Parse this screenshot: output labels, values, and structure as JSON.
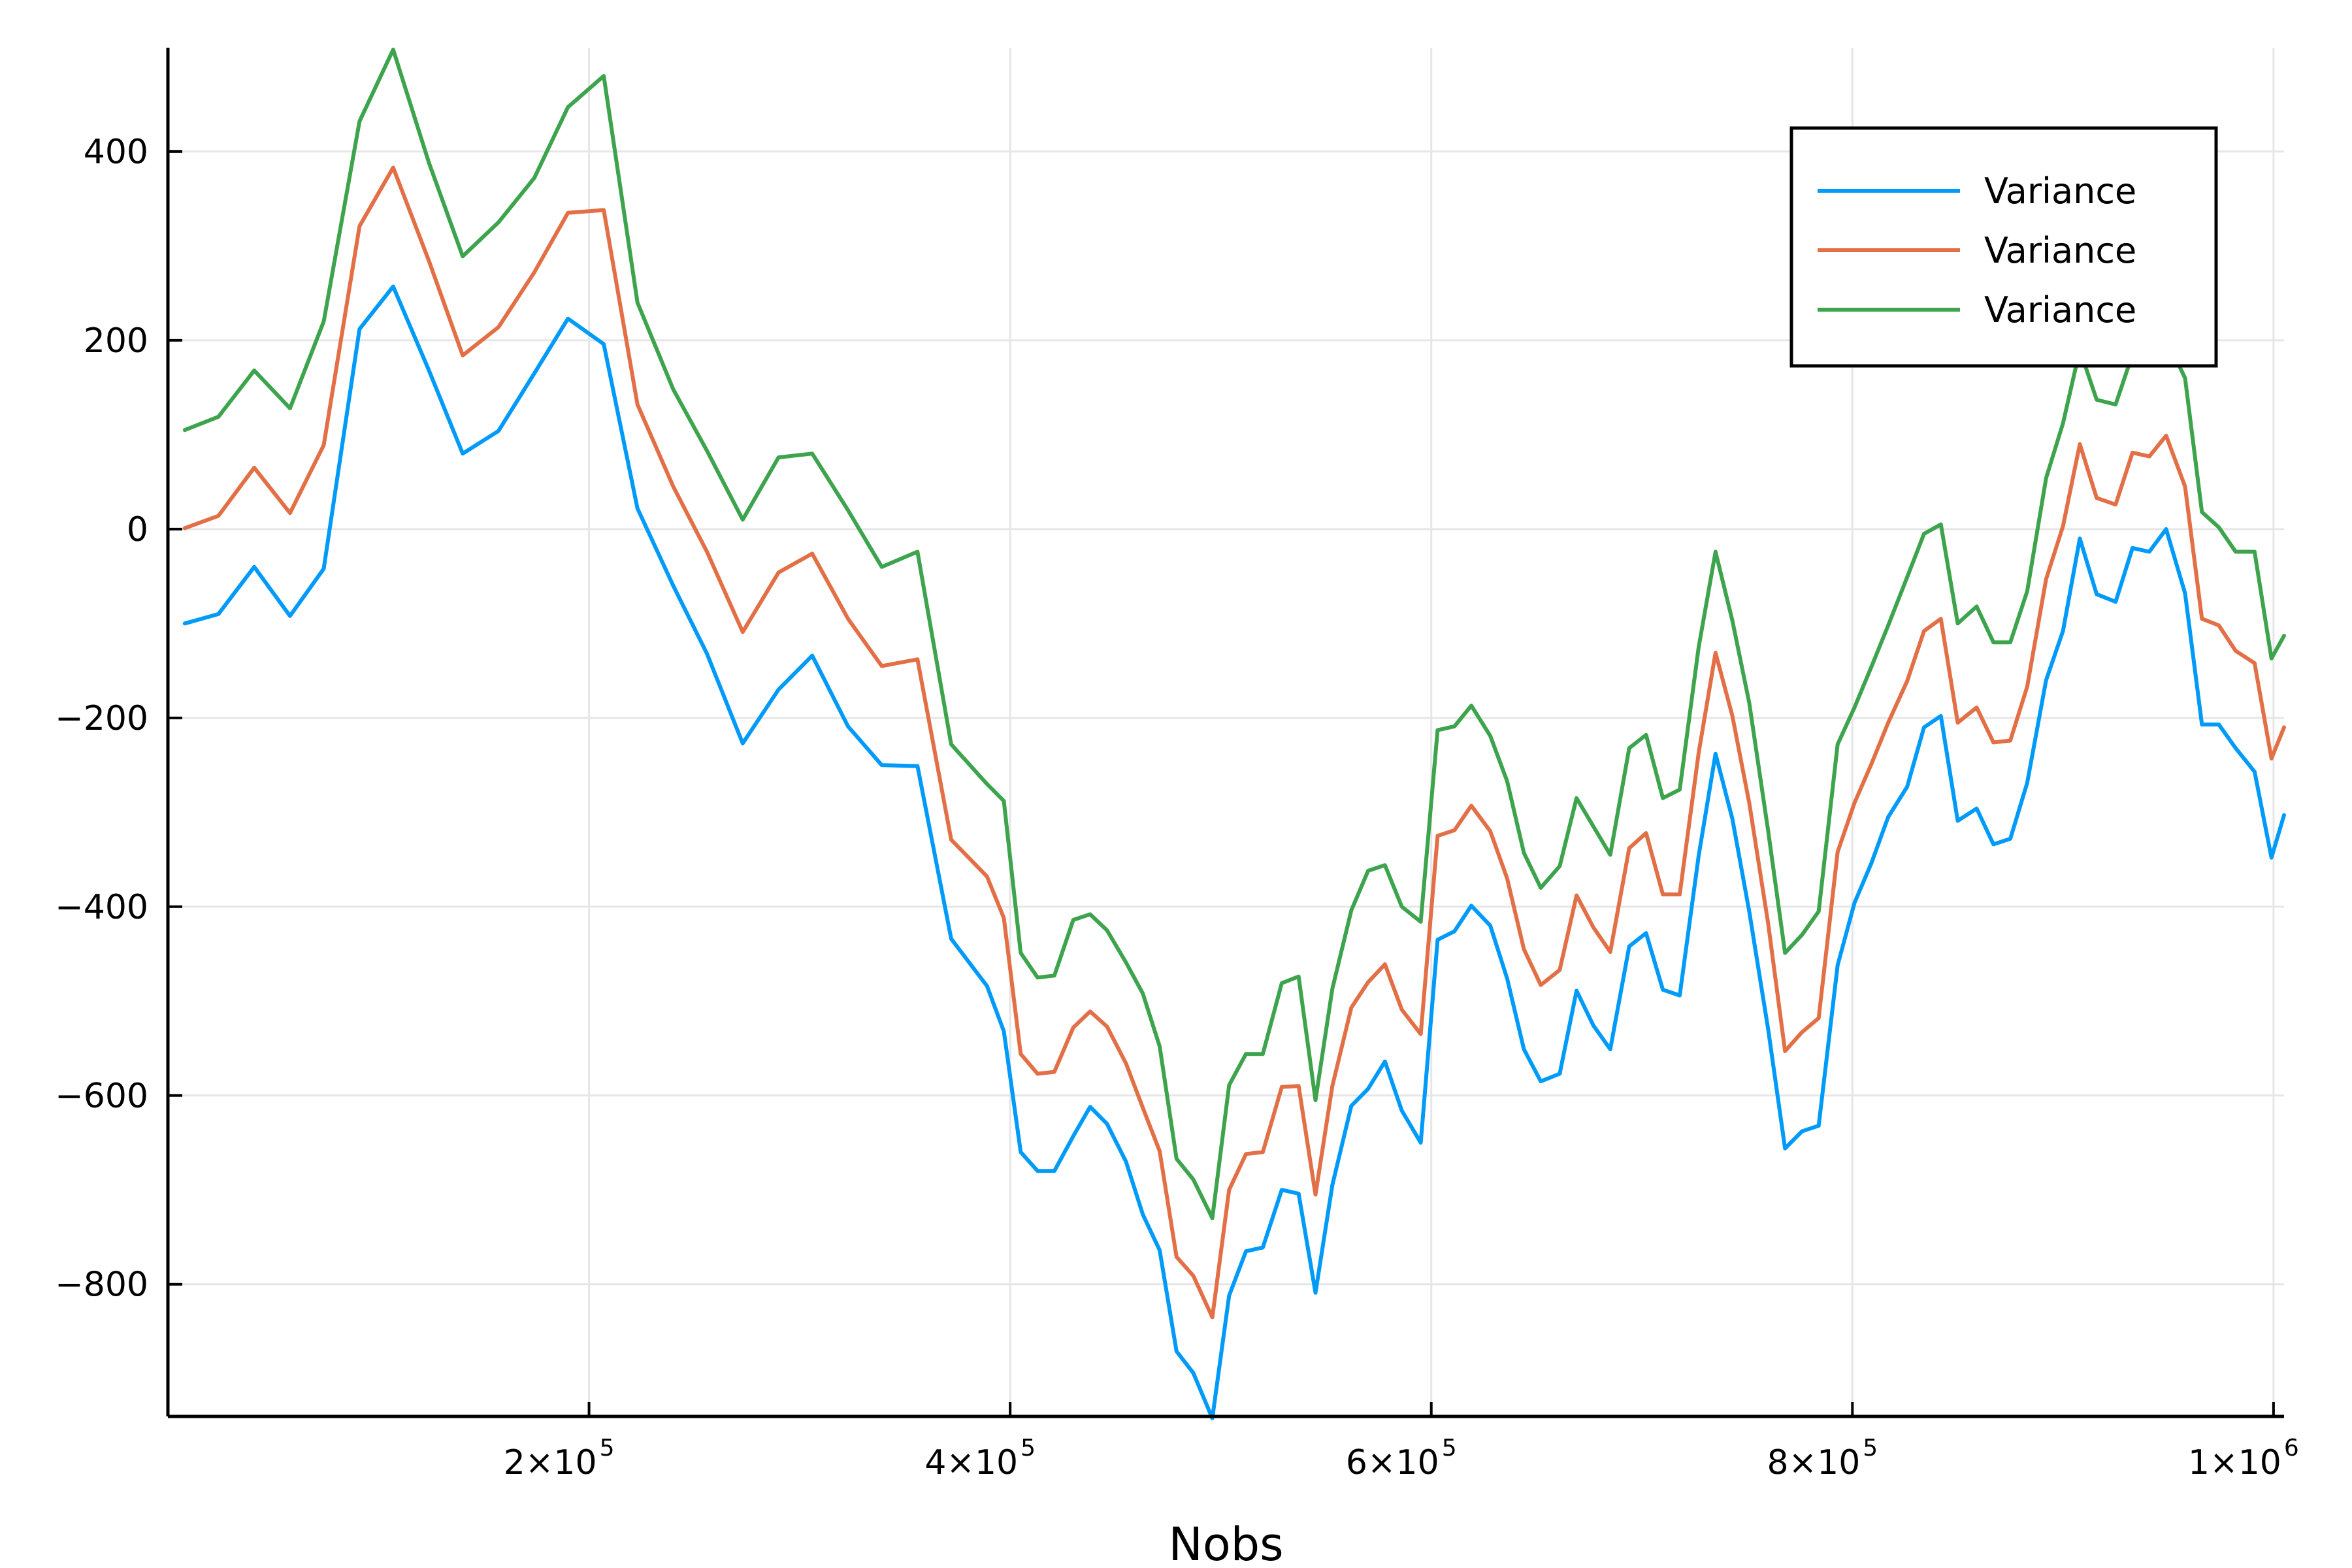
{
  "chart_data": {
    "type": "line",
    "title": "",
    "xlabel": "Nobs",
    "ylabel": "",
    "xlim": [
      0,
      1005000
    ],
    "ylim": [
      -940,
      510
    ],
    "x_ticks": [
      {
        "value": 200000,
        "mantissa": "2×10",
        "exp": "5"
      },
      {
        "value": 400000,
        "mantissa": "4×10",
        "exp": "5"
      },
      {
        "value": 600000,
        "mantissa": "6×10",
        "exp": "5"
      },
      {
        "value": 800000,
        "mantissa": "8×10",
        "exp": "5"
      },
      {
        "value": 1000000,
        "mantissa": "1×10",
        "exp": "6"
      }
    ],
    "y_ticks": [
      {
        "value": 400,
        "label": "400"
      },
      {
        "value": 200,
        "label": "200"
      },
      {
        "value": 0,
        "label": "0"
      },
      {
        "value": -200,
        "label": "−200"
      },
      {
        "value": -400,
        "label": "−400"
      },
      {
        "value": -600,
        "label": "−600"
      },
      {
        "value": -800,
        "label": "−800"
      }
    ],
    "grid": true,
    "legend_position": "top-right",
    "x": [
      8000,
      24000,
      41000,
      58000,
      74000,
      91000,
      107000,
      124000,
      140000,
      157000,
      174000,
      190000,
      207000,
      223000,
      240000,
      256000,
      273000,
      290000,
      306000,
      323000,
      339000,
      356000,
      372000,
      389000,
      397000,
      405000,
      413000,
      421000,
      430000,
      438000,
      446000,
      455000,
      463000,
      471000,
      479000,
      487000,
      496000,
      504000,
      512000,
      520000,
      529000,
      537000,
      545000,
      553000,
      562000,
      570000,
      578000,
      586000,
      595000,
      603000,
      611000,
      619000,
      628000,
      636000,
      644000,
      652000,
      661000,
      669000,
      677000,
      685000,
      694000,
      702000,
      710000,
      718000,
      727000,
      735000,
      743000,
      751000,
      760000,
      768000,
      776000,
      784000,
      793000,
      801000,
      809000,
      817000,
      826000,
      834000,
      842000,
      850000,
      859000,
      867000,
      875000,
      883000,
      892000,
      900000,
      908000,
      916000,
      925000,
      933000,
      941000,
      949000,
      958000,
      966000,
      974000,
      982000,
      991000,
      999000,
      1005000
    ],
    "series": [
      {
        "name": "Variance",
        "color": "#009af9",
        "values": [
          -100,
          -90,
          -40,
          -92,
          -42,
          212,
          257,
          168,
          80,
          104,
          165,
          223,
          196,
          22,
          -60,
          -132,
          -227,
          -170,
          -134,
          -209,
          -250,
          -251,
          -434,
          -484,
          -532,
          -660,
          -680,
          -680,
          -643,
          -612,
          -630,
          -670,
          -726,
          -764,
          -871,
          -894,
          -942,
          -812,
          -765,
          -761,
          -700,
          -704,
          -809,
          -695,
          -611,
          -593,
          -564,
          -616,
          -650,
          -435,
          -426,
          -399,
          -420,
          -476,
          -551,
          -585,
          -577,
          -489,
          -526,
          -551,
          -442,
          -428,
          -488,
          -494,
          -346,
          -238,
          -307,
          -405,
          -530,
          -656,
          -638,
          -632,
          -462,
          -396,
          -354,
          -305,
          -273,
          -210,
          -198,
          -309,
          -296,
          -334,
          -328,
          -269,
          -160,
          -108,
          -10,
          -69,
          -77,
          -20,
          -24,
          0,
          -68,
          -207,
          -207,
          -232,
          -257,
          -348,
          -303
        ]
      },
      {
        "name": "Variance",
        "color": "#e26f46",
        "values": [
          1,
          14,
          65,
          17,
          89,
          321,
          383,
          284,
          184,
          214,
          272,
          335,
          338,
          132,
          45,
          -24,
          -109,
          -46,
          -26,
          -95,
          -145,
          -138,
          -329,
          -368,
          -412,
          -556,
          -577,
          -575,
          -528,
          -511,
          -527,
          -566,
          -613,
          -659,
          -771,
          -791,
          -835,
          -700,
          -662,
          -660,
          -591,
          -590,
          -705,
          -590,
          -507,
          -480,
          -461,
          -509,
          -535,
          -325,
          -319,
          -293,
          -320,
          -370,
          -445,
          -483,
          -467,
          -388,
          -422,
          -448,
          -338,
          -322,
          -387,
          -387,
          -237,
          -131,
          -198,
          -290,
          -418,
          -553,
          -533,
          -518,
          -342,
          -290,
          -249,
          -205,
          -161,
          -108,
          -95,
          -205,
          -189,
          -226,
          -224,
          -167,
          -53,
          3,
          90,
          33,
          26,
          81,
          77,
          99,
          45,
          -95,
          -102,
          -129,
          -142,
          -243,
          -210
        ]
      },
      {
        "name": "Variance",
        "color": "#3da44d",
        "values": [
          105,
          119,
          168,
          128,
          220,
          432,
          508,
          388,
          289,
          325,
          372,
          447,
          480,
          240,
          148,
          83,
          10,
          76,
          80,
          20,
          -40,
          -24,
          -228,
          -270,
          -288,
          -449,
          -475,
          -473,
          -414,
          -408,
          -425,
          -459,
          -492,
          -548,
          -667,
          -689,
          -730,
          -589,
          -556,
          -556,
          -481,
          -474,
          -605,
          -487,
          -404,
          -362,
          -356,
          -400,
          -416,
          -213,
          -209,
          -187,
          -219,
          -267,
          -343,
          -380,
          -357,
          -285,
          -315,
          -345,
          -232,
          -218,
          -285,
          -276,
          -125,
          -24,
          -97,
          -184,
          -320,
          -449,
          -430,
          -405,
          -228,
          -189,
          -146,
          -102,
          -51,
          -5,
          5,
          -100,
          -82,
          -120,
          -120,
          -66,
          54,
          112,
          190,
          137,
          132,
          185,
          180,
          202,
          160,
          18,
          2,
          -24,
          -24,
          -137,
          -113
        ]
      }
    ]
  }
}
